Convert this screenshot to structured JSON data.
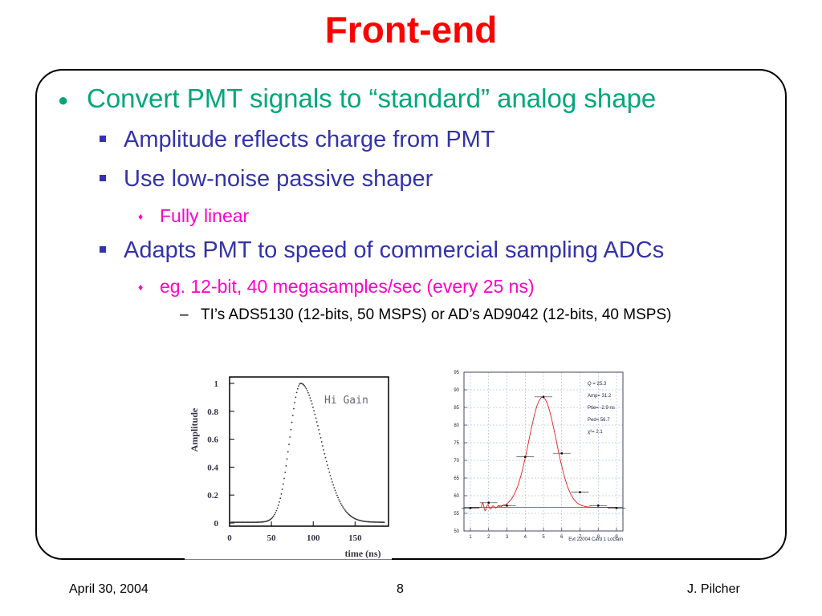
{
  "title": "Front-end",
  "bullets": {
    "l1": "Convert PMT signals to “standard” analog shape",
    "l2a": "Amplitude reflects charge from PMT",
    "l2b": "Use low-noise passive shaper",
    "l3a": "Fully linear",
    "l2c": "Adapts PMT to speed of commercial sampling ADCs",
    "l3b": "eg. 12-bit, 40 megasamples/sec (every 25 ns)",
    "l4a": "TI’s ADS5130 (12-bits, 50 MSPS) or AD’s AD9042 (12-bits, 40 MSPS)"
  },
  "footer": {
    "date": "April 30, 2004",
    "page": "8",
    "author": "J. Pilcher"
  },
  "chart_data": [
    {
      "type": "scatter",
      "xlabel": "time (ns)",
      "ylabel": "Amplitude",
      "annotation": "Hi Gain",
      "xlim": [
        0,
        190
      ],
      "ylim": [
        0,
        1.0
      ],
      "xticks": [
        "0",
        "50",
        "100",
        "150"
      ],
      "yticks": [
        "0",
        "0.2",
        "0.4",
        "0.6",
        "0.8",
        "1"
      ],
      "pulse": {
        "baseline": 0.005,
        "peak_x": 85,
        "peak_y": 1.0,
        "rise_sigma": 13,
        "fall_sigma": 24
      }
    },
    {
      "type": "scatter",
      "footnote": "Evt 22004 Card 1 LoGain",
      "xlim": [
        1,
        9
      ],
      "ylim": [
        50,
        95
      ],
      "xticks": [
        "1",
        "2",
        "3",
        "4",
        "5",
        "6",
        "7",
        "8",
        "9"
      ],
      "yticks": [
        "50",
        "55",
        "60",
        "65",
        "70",
        "75",
        "80",
        "85",
        "90",
        "95"
      ],
      "fit_params": [
        "Q = 25.3",
        "Amp= 31.2",
        "Ptie= -2.9 ns",
        "Ped= 56.7",
        "χ²= 2.1"
      ],
      "points": [
        {
          "x": 1,
          "y": 56.5
        },
        {
          "x": 2,
          "y": 58.0
        },
        {
          "x": 3,
          "y": 57.2
        },
        {
          "x": 4,
          "y": 71.0
        },
        {
          "x": 5,
          "y": 88.0
        },
        {
          "x": 6,
          "y": 72.0
        },
        {
          "x": 7,
          "y": 61.0
        },
        {
          "x": 8,
          "y": 57.2
        },
        {
          "x": 9,
          "y": 56.5
        }
      ],
      "fit": {
        "pedestal": 56.7,
        "amp": 31.2,
        "peak_x": 4.95,
        "sigma": 0.75
      }
    }
  ]
}
